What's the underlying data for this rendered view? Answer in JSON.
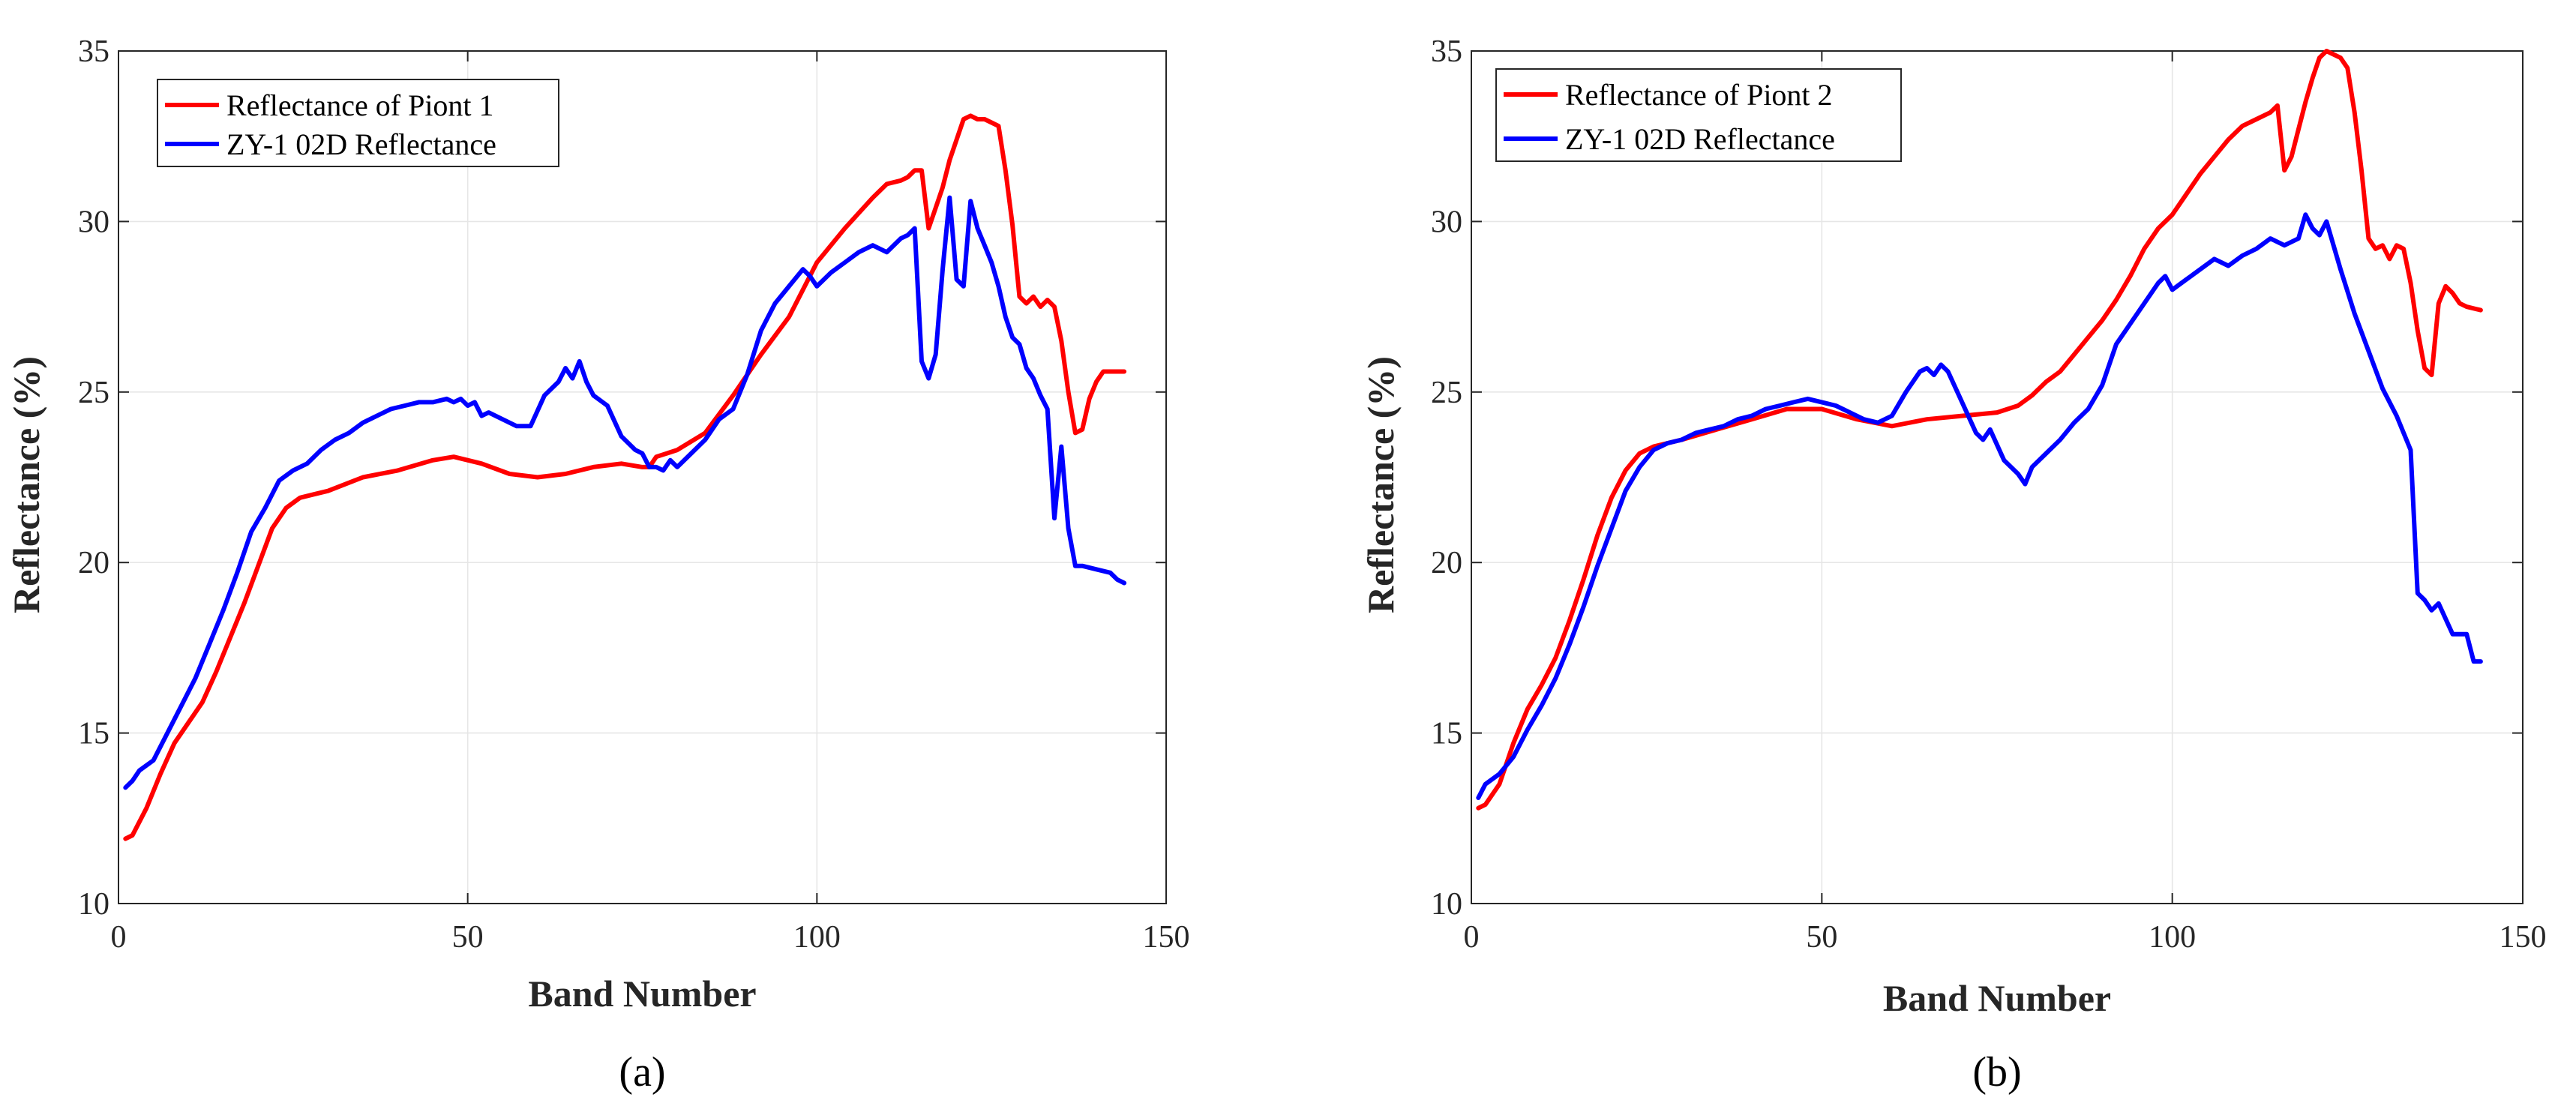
{
  "figure": {
    "panels": [
      "(a)",
      "(b)"
    ]
  },
  "chart_data": [
    {
      "id": "a",
      "type": "line",
      "panel_label": "(a)",
      "title": "",
      "xlabel": "Band Number",
      "ylabel": "Reflectance (%)",
      "xlim": [
        0,
        150
      ],
      "ylim": [
        10,
        35
      ],
      "xticks": [
        0,
        50,
        100,
        150
      ],
      "yticks": [
        10,
        15,
        20,
        25,
        30,
        35
      ],
      "grid": true,
      "legend_position": "top-left",
      "series": [
        {
          "name": "Reflectance of Piont 1",
          "color": "#ff0000",
          "x": [
            1,
            2,
            4,
            6,
            8,
            10,
            12,
            14,
            16,
            18,
            20,
            22,
            24,
            26,
            28,
            30,
            35,
            40,
            45,
            48,
            52,
            56,
            60,
            64,
            68,
            72,
            75,
            76,
            77,
            80,
            84,
            88,
            92,
            96,
            100,
            104,
            108,
            110,
            112,
            113,
            114,
            115,
            116,
            117,
            118,
            119,
            120,
            121,
            122,
            123,
            124,
            125,
            126,
            127,
            128,
            129,
            130,
            131,
            132,
            133,
            134,
            135,
            136,
            137,
            138,
            139,
            140,
            141,
            142,
            143,
            144
          ],
          "values": [
            11.9,
            12.0,
            12.8,
            13.8,
            14.7,
            15.3,
            15.9,
            16.8,
            17.8,
            18.8,
            19.9,
            21.0,
            21.6,
            21.9,
            22.0,
            22.1,
            22.5,
            22.7,
            23.0,
            23.1,
            22.9,
            22.6,
            22.5,
            22.6,
            22.8,
            22.9,
            22.8,
            22.8,
            23.1,
            23.3,
            23.8,
            24.9,
            26.1,
            27.2,
            28.8,
            29.8,
            30.7,
            31.1,
            31.2,
            31.3,
            31.5,
            31.5,
            29.8,
            30.4,
            31.0,
            31.8,
            32.4,
            33.0,
            33.1,
            33.0,
            33.0,
            32.9,
            32.8,
            31.5,
            29.9,
            27.8,
            27.6,
            27.8,
            27.5,
            27.7,
            27.5,
            26.5,
            25.0,
            23.8,
            23.9,
            24.8,
            25.3,
            25.6,
            25.6,
            25.6,
            25.6
          ]
        },
        {
          "name": "ZY-1 02D Reflectance",
          "color": "#0000ff",
          "x": [
            1,
            2,
            3,
            5,
            7,
            9,
            11,
            13,
            15,
            17,
            19,
            21,
            23,
            25,
            27,
            29,
            31,
            33,
            35,
            37,
            39,
            41,
            43,
            45,
            47,
            48,
            49,
            50,
            51,
            52,
            53,
            55,
            57,
            59,
            61,
            63,
            64,
            65,
            66,
            67,
            68,
            70,
            72,
            74,
            75,
            76,
            77,
            78,
            79,
            80,
            82,
            84,
            86,
            88,
            90,
            92,
            94,
            96,
            98,
            99,
            100,
            102,
            104,
            106,
            108,
            110,
            112,
            113,
            114,
            115,
            116,
            117,
            118,
            119,
            120,
            121,
            122,
            123,
            124,
            125,
            126,
            127,
            128,
            129,
            130,
            131,
            132,
            133,
            134,
            135,
            136,
            137,
            138,
            140,
            142,
            143,
            144
          ],
          "values": [
            13.4,
            13.6,
            13.9,
            14.2,
            15.0,
            15.8,
            16.6,
            17.6,
            18.6,
            19.7,
            20.9,
            21.6,
            22.4,
            22.7,
            22.9,
            23.3,
            23.6,
            23.8,
            24.1,
            24.3,
            24.5,
            24.6,
            24.7,
            24.7,
            24.8,
            24.7,
            24.8,
            24.6,
            24.7,
            24.3,
            24.4,
            24.2,
            24.0,
            24.0,
            24.9,
            25.3,
            25.7,
            25.4,
            25.9,
            25.3,
            24.9,
            24.6,
            23.7,
            23.3,
            23.2,
            22.8,
            22.8,
            22.7,
            23.0,
            22.8,
            23.2,
            23.6,
            24.2,
            24.5,
            25.5,
            26.8,
            27.6,
            28.1,
            28.6,
            28.4,
            28.1,
            28.5,
            28.8,
            29.1,
            29.3,
            29.1,
            29.5,
            29.6,
            29.8,
            25.9,
            25.4,
            26.1,
            28.6,
            30.7,
            28.3,
            28.1,
            30.6,
            29.8,
            29.3,
            28.8,
            28.1,
            27.2,
            26.6,
            26.4,
            25.7,
            25.4,
            24.9,
            24.5,
            21.3,
            23.4,
            21.0,
            19.9,
            19.9,
            19.8,
            19.7,
            19.5,
            19.4
          ]
        }
      ]
    },
    {
      "id": "b",
      "type": "line",
      "panel_label": "(b)",
      "title": "",
      "xlabel": "Band Number",
      "ylabel": "Reflectance (%)",
      "xlim": [
        0,
        150
      ],
      "ylim": [
        10,
        35
      ],
      "xticks": [
        0,
        50,
        100,
        150
      ],
      "yticks": [
        10,
        15,
        20,
        25,
        30,
        35
      ],
      "grid": true,
      "legend_position": "top-left",
      "series": [
        {
          "name": "Reflectance of Piont 2",
          "color": "#ff0000",
          "x": [
            1,
            2,
            4,
            6,
            8,
            10,
            12,
            14,
            16,
            18,
            20,
            22,
            24,
            26,
            28,
            30,
            35,
            40,
            45,
            50,
            55,
            60,
            65,
            70,
            75,
            78,
            80,
            82,
            84,
            86,
            88,
            90,
            92,
            94,
            96,
            98,
            100,
            102,
            104,
            106,
            108,
            110,
            112,
            114,
            115,
            116,
            117,
            118,
            119,
            120,
            121,
            122,
            123,
            124,
            125,
            126,
            127,
            128,
            129,
            130,
            131,
            132,
            133,
            134,
            135,
            136,
            137,
            138,
            139,
            140,
            141,
            142,
            144
          ],
          "values": [
            12.8,
            12.9,
            13.5,
            14.7,
            15.7,
            16.4,
            17.2,
            18.3,
            19.5,
            20.8,
            21.9,
            22.7,
            23.2,
            23.4,
            23.5,
            23.6,
            23.9,
            24.2,
            24.5,
            24.5,
            24.2,
            24.0,
            24.2,
            24.3,
            24.4,
            24.6,
            24.9,
            25.3,
            25.6,
            26.1,
            26.6,
            27.1,
            27.7,
            28.4,
            29.2,
            29.8,
            30.2,
            30.8,
            31.4,
            31.9,
            32.4,
            32.8,
            33.0,
            33.2,
            33.4,
            31.5,
            31.9,
            32.7,
            33.5,
            34.2,
            34.8,
            35.0,
            34.9,
            34.8,
            34.5,
            33.2,
            31.5,
            29.5,
            29.2,
            29.3,
            28.9,
            29.3,
            29.2,
            28.2,
            26.8,
            25.7,
            25.5,
            27.6,
            28.1,
            27.9,
            27.6,
            27.5,
            27.4
          ]
        },
        {
          "name": "ZY-1 02D Reflectance",
          "color": "#0000ff",
          "x": [
            1,
            2,
            4,
            6,
            8,
            10,
            12,
            14,
            16,
            18,
            20,
            22,
            24,
            26,
            28,
            30,
            32,
            34,
            36,
            38,
            40,
            42,
            44,
            46,
            48,
            50,
            52,
            54,
            56,
            58,
            60,
            62,
            64,
            65,
            66,
            67,
            68,
            70,
            72,
            73,
            74,
            76,
            78,
            79,
            80,
            82,
            84,
            86,
            88,
            90,
            92,
            94,
            96,
            98,
            99,
            100,
            102,
            104,
            106,
            108,
            110,
            112,
            114,
            116,
            118,
            119,
            120,
            121,
            122,
            124,
            126,
            128,
            130,
            132,
            134,
            135,
            136,
            137,
            138,
            140,
            142,
            143,
            144
          ],
          "values": [
            13.1,
            13.5,
            13.8,
            14.3,
            15.1,
            15.8,
            16.6,
            17.6,
            18.7,
            19.9,
            21.0,
            22.1,
            22.8,
            23.3,
            23.5,
            23.6,
            23.8,
            23.9,
            24.0,
            24.2,
            24.3,
            24.5,
            24.6,
            24.7,
            24.8,
            24.7,
            24.6,
            24.4,
            24.2,
            24.1,
            24.3,
            25.0,
            25.6,
            25.7,
            25.5,
            25.8,
            25.6,
            24.7,
            23.8,
            23.6,
            23.9,
            23.0,
            22.6,
            22.3,
            22.8,
            23.2,
            23.6,
            24.1,
            24.5,
            25.2,
            26.4,
            27.0,
            27.6,
            28.2,
            28.4,
            28.0,
            28.3,
            28.6,
            28.9,
            28.7,
            29.0,
            29.2,
            29.5,
            29.3,
            29.5,
            30.2,
            29.8,
            29.6,
            30.0,
            28.6,
            27.3,
            26.2,
            25.1,
            24.3,
            23.3,
            19.1,
            18.9,
            18.6,
            18.8,
            17.9,
            17.9,
            17.1,
            17.1
          ]
        }
      ]
    }
  ]
}
